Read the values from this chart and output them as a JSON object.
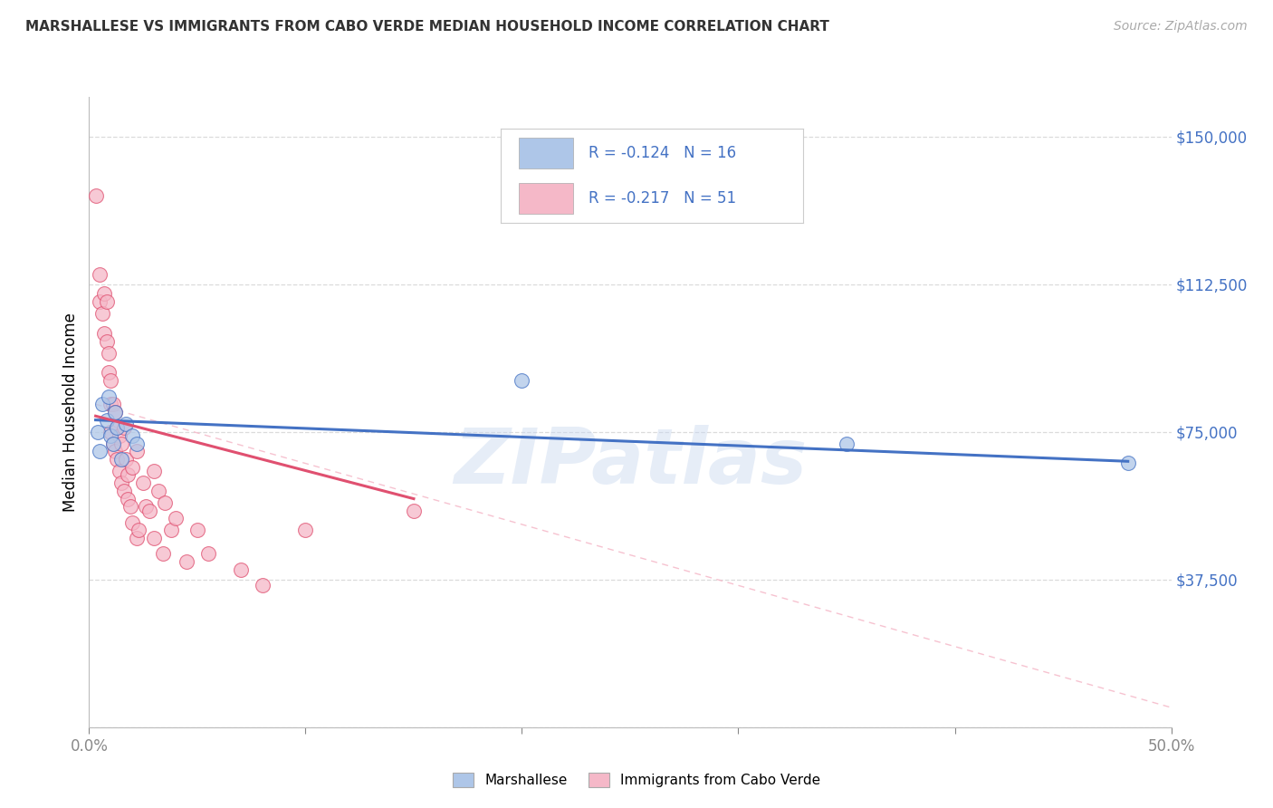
{
  "title": "MARSHALLESE VS IMMIGRANTS FROM CABO VERDE MEDIAN HOUSEHOLD INCOME CORRELATION CHART",
  "source": "Source: ZipAtlas.com",
  "ylabel": "Median Household Income",
  "xlim": [
    0.0,
    0.5
  ],
  "ylim": [
    0,
    160000
  ],
  "yticks": [
    0,
    37500,
    75000,
    112500,
    150000
  ],
  "ytick_labels": [
    "",
    "$37,500",
    "$75,000",
    "$112,500",
    "$150,000"
  ],
  "xticks": [
    0.0,
    0.1,
    0.2,
    0.3,
    0.4,
    0.5
  ],
  "xtick_labels": [
    "0.0%",
    "",
    "",
    "",
    "",
    "50.0%"
  ],
  "blue_color": "#aec6e8",
  "pink_color": "#f5b8c8",
  "blue_line_color": "#4472c4",
  "pink_line_color": "#e05070",
  "blue_label": "Marshallese",
  "pink_label": "Immigrants from Cabo Verde",
  "blue_R": -0.124,
  "blue_N": 16,
  "pink_R": -0.217,
  "pink_N": 51,
  "blue_scatter_x": [
    0.004,
    0.005,
    0.006,
    0.008,
    0.009,
    0.01,
    0.011,
    0.012,
    0.013,
    0.015,
    0.017,
    0.02,
    0.022,
    0.2,
    0.35,
    0.48
  ],
  "blue_scatter_y": [
    75000,
    70000,
    82000,
    78000,
    84000,
    74000,
    72000,
    80000,
    76000,
    68000,
    77000,
    74000,
    72000,
    88000,
    72000,
    67000
  ],
  "pink_scatter_x": [
    0.003,
    0.005,
    0.005,
    0.006,
    0.007,
    0.007,
    0.008,
    0.008,
    0.009,
    0.009,
    0.01,
    0.01,
    0.01,
    0.011,
    0.011,
    0.012,
    0.012,
    0.013,
    0.013,
    0.014,
    0.014,
    0.015,
    0.015,
    0.016,
    0.016,
    0.017,
    0.018,
    0.018,
    0.019,
    0.02,
    0.02,
    0.022,
    0.022,
    0.023,
    0.025,
    0.026,
    0.028,
    0.03,
    0.03,
    0.032,
    0.034,
    0.035,
    0.038,
    0.04,
    0.045,
    0.05,
    0.055,
    0.07,
    0.08,
    0.1,
    0.15
  ],
  "pink_scatter_y": [
    135000,
    115000,
    108000,
    105000,
    110000,
    100000,
    108000,
    98000,
    95000,
    90000,
    88000,
    82000,
    75000,
    82000,
    72000,
    80000,
    70000,
    76000,
    68000,
    74000,
    65000,
    72000,
    62000,
    76000,
    60000,
    68000,
    64000,
    58000,
    56000,
    66000,
    52000,
    70000,
    48000,
    50000,
    62000,
    56000,
    55000,
    65000,
    48000,
    60000,
    44000,
    57000,
    50000,
    53000,
    42000,
    50000,
    44000,
    40000,
    36000,
    50000,
    55000
  ],
  "watermark_text": "ZIPatlas",
  "background_color": "#ffffff",
  "grid_color": "#d8d8d8",
  "tick_color": "#4472c4",
  "blue_trendline": [
    0.003,
    78000,
    0.48,
    67500
  ],
  "pink_trendline": [
    0.003,
    79000,
    0.15,
    58000
  ],
  "dash_line": [
    0.003,
    82000,
    0.5,
    5000
  ]
}
